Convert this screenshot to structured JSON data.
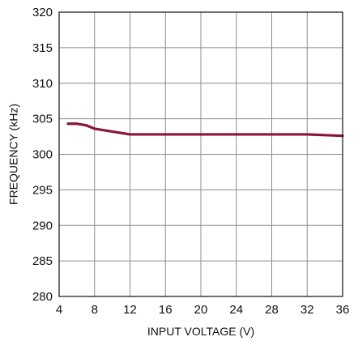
{
  "chart_data": {
    "type": "line",
    "title": "",
    "xlabel": "INPUT VOLTAGE (V)",
    "ylabel": "FREQUENCY (kHz)",
    "xlim": [
      4,
      36
    ],
    "ylim": [
      280,
      320
    ],
    "xticks": [
      4,
      8,
      12,
      16,
      20,
      24,
      28,
      32,
      36
    ],
    "yticks": [
      280,
      285,
      290,
      295,
      300,
      305,
      310,
      315,
      320
    ],
    "grid": true,
    "legend": "none",
    "series": [
      {
        "color": "#8a1538",
        "x": [
          5,
          6,
          7,
          8,
          9,
          10,
          11,
          12,
          14,
          16,
          20,
          24,
          28,
          32,
          34,
          36
        ],
        "y": [
          304.3,
          304.3,
          304.1,
          303.6,
          303.4,
          303.2,
          303.0,
          302.8,
          302.8,
          302.8,
          302.8,
          302.8,
          302.8,
          302.8,
          302.7,
          302.6
        ]
      }
    ]
  },
  "colors": {
    "grid": "#8c8c8c",
    "frame": "#111111",
    "text": "#111111"
  }
}
